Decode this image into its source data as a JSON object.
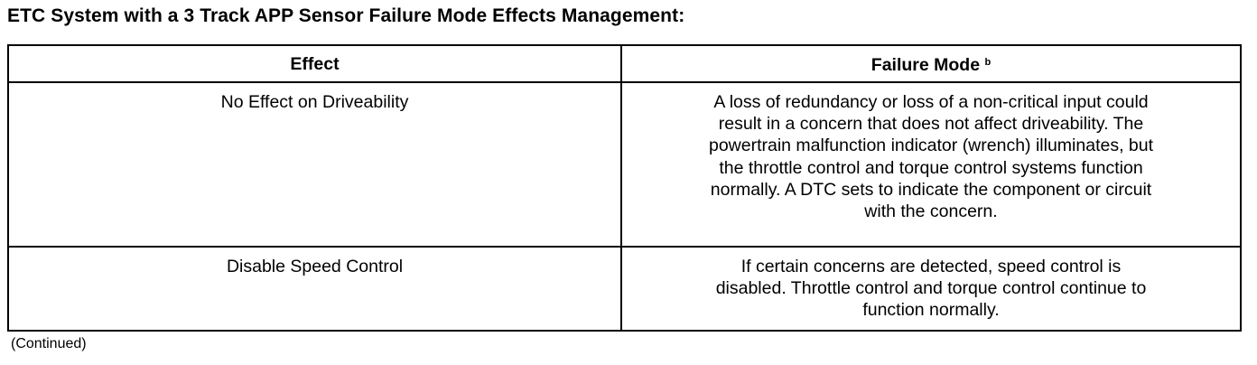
{
  "title": "ETC System with a 3 Track APP Sensor Failure Mode Effects Management:",
  "table": {
    "headers": {
      "effect": "Effect",
      "failure_mode": "Failure Mode",
      "failure_mode_note": "b"
    },
    "rows": [
      {
        "effect": "No Effect on Driveability",
        "failure_mode_lines": [
          "A loss of redundancy or loss of a non-critical input could",
          "result in a concern that does not affect driveability. The",
          "powertrain malfunction indicator (wrench) illuminates, but",
          "the throttle control and torque control systems function",
          "normally. A DTC sets to indicate the component or circuit",
          "with the concern."
        ]
      },
      {
        "effect": "Disable Speed Control",
        "failure_mode_lines": [
          "If certain concerns are detected, speed control is",
          "disabled. Throttle control and torque control continue to",
          "function normally."
        ]
      }
    ]
  },
  "footer": "(Continued)"
}
